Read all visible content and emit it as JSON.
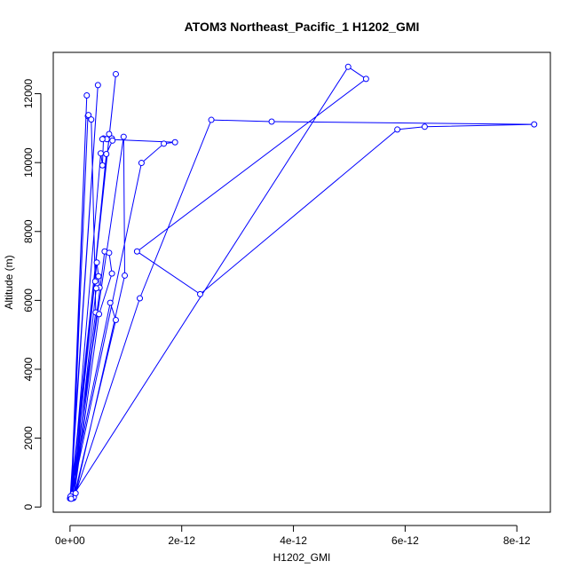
{
  "chart_data": {
    "type": "line",
    "title": "ATOM3 Northeast_Pacific_1 H1202_GMI",
    "xlabel": "H1202_GMI",
    "ylabel": "Altitude (m)",
    "xlim": [
      -3e-13,
      8.6e-12
    ],
    "ylim": [
      -150,
      13200
    ],
    "x_ticks": [
      0,
      2e-12,
      4e-12,
      6e-12,
      8e-12
    ],
    "x_tick_labels": [
      "0e+00",
      "2e-12",
      "4e-12",
      "6e-12",
      "8e-12"
    ],
    "y_ticks": [
      0,
      2000,
      4000,
      6000,
      8000,
      10000,
      12000
    ],
    "y_tick_labels": [
      "0",
      "2000",
      "4000",
      "6000",
      "8000",
      "10000",
      "12000"
    ],
    "grid": false,
    "series": [
      {
        "color": "#0000ff",
        "marker": "open-circle",
        "points": [
          {
            "x": 0.0,
            "y": 250
          },
          {
            "x": 5e-13,
            "y": 12250
          },
          {
            "x": 1e-14,
            "y": 280
          },
          {
            "x": 8.2e-13,
            "y": 12570
          },
          {
            "x": 2e-14,
            "y": 300
          },
          {
            "x": 3e-13,
            "y": 11950
          },
          {
            "x": 3e-14,
            "y": 320
          },
          {
            "x": 3.2e-13,
            "y": 11350
          },
          {
            "x": 3.3e-13,
            "y": 11380
          },
          {
            "x": 3.8e-13,
            "y": 11250
          },
          {
            "x": 4.5e-13,
            "y": 6550
          },
          {
            "x": 4.6e-13,
            "y": 5650
          },
          {
            "x": 4e-14,
            "y": 350
          },
          {
            "x": 5.5e-13,
            "y": 10270
          },
          {
            "x": 5.8e-13,
            "y": 9920
          },
          {
            "x": 6e-13,
            "y": 10700
          },
          {
            "x": 6.6e-13,
            "y": 10680
          },
          {
            "x": 7e-13,
            "y": 10830
          },
          {
            "x": 7.5e-13,
            "y": 10700
          },
          {
            "x": 7.6e-13,
            "y": 10640
          },
          {
            "x": 6.5e-13,
            "y": 10250
          },
          {
            "x": 5e-14,
            "y": 380
          },
          {
            "x": 4.8e-13,
            "y": 7100
          },
          {
            "x": 5.1e-13,
            "y": 6700
          },
          {
            "x": 5.3e-13,
            "y": 6370
          },
          {
            "x": 4.7e-13,
            "y": 6350
          },
          {
            "x": 6e-14,
            "y": 260
          },
          {
            "x": 6.2e-13,
            "y": 7420
          },
          {
            "x": 7e-13,
            "y": 7380
          },
          {
            "x": 7.5e-13,
            "y": 6780
          },
          {
            "x": 5.2e-13,
            "y": 5600
          },
          {
            "x": 7e-14,
            "y": 290
          },
          {
            "x": 8.2e-13,
            "y": 5430
          },
          {
            "x": 7.2e-13,
            "y": 5930
          },
          {
            "x": 1e-14,
            "y": 310
          },
          {
            "x": 9.6e-13,
            "y": 10750
          },
          {
            "x": 9.8e-13,
            "y": 6720
          },
          {
            "x": 1e-13,
            "y": 400
          },
          {
            "x": 1.25e-12,
            "y": 6060
          },
          {
            "x": 2.53e-12,
            "y": 11240
          },
          {
            "x": 3.61e-12,
            "y": 11190
          },
          {
            "x": 8.31e-12,
            "y": 11110
          },
          {
            "x": 6.35e-12,
            "y": 11040
          },
          {
            "x": 5.86e-12,
            "y": 10960
          },
          {
            "x": 2.33e-12,
            "y": 6180
          },
          {
            "x": 1.2e-12,
            "y": 7420
          },
          {
            "x": 5.3e-12,
            "y": 12430
          },
          {
            "x": 4.98e-12,
            "y": 12780
          },
          {
            "x": 2e-14,
            "y": 240
          },
          {
            "x": 1.28e-12,
            "y": 9990
          },
          {
            "x": 1.68e-12,
            "y": 10550
          },
          {
            "x": 1.88e-12,
            "y": 10590
          },
          {
            "x": 5.8e-13,
            "y": 10680
          }
        ]
      }
    ]
  }
}
